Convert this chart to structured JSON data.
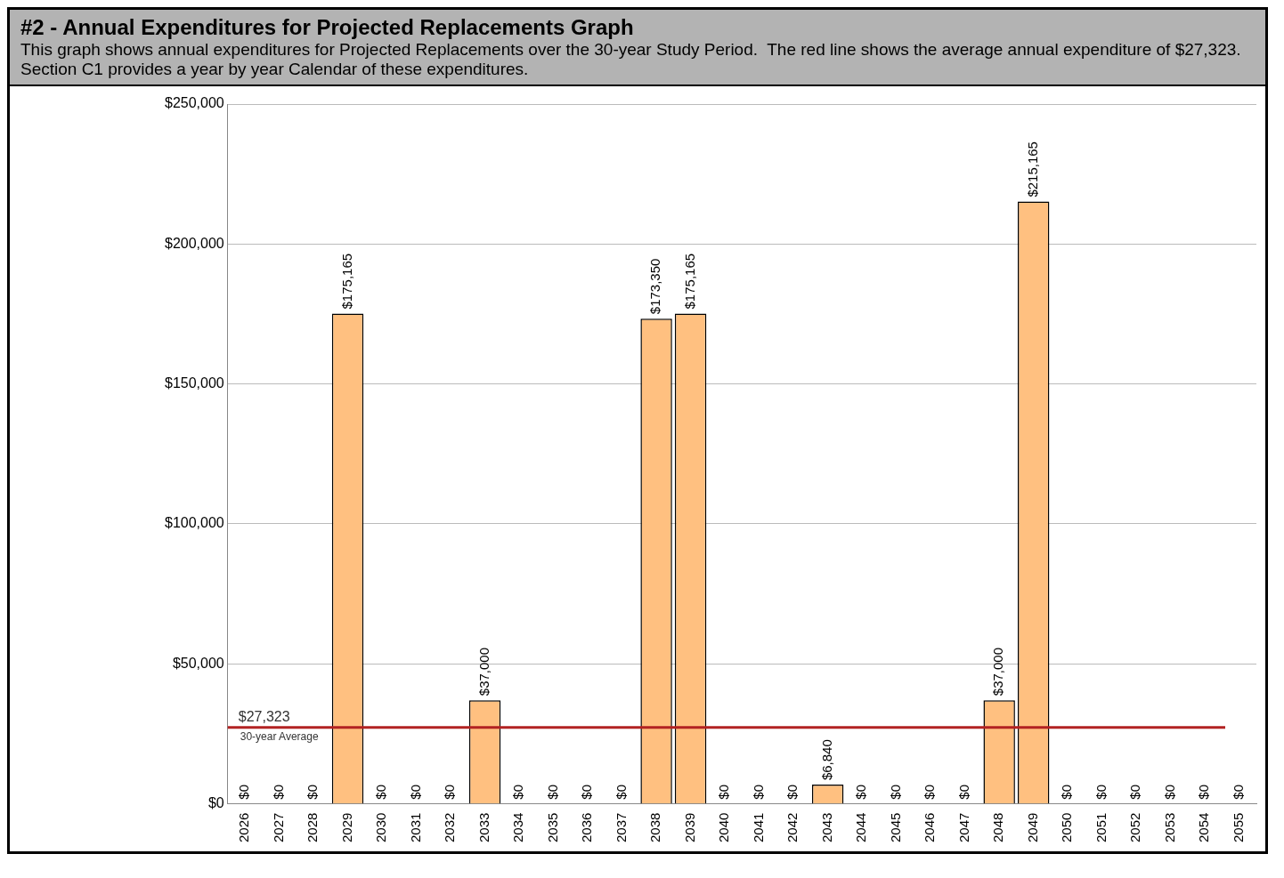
{
  "chart_data": {
    "type": "bar",
    "title": "#2 - Annual Expenditures for Projected Replacements Graph",
    "subtitle": "This graph shows annual expenditures for Projected Replacements over the 30-year Study Period.  The red line shows the average annual expenditure of $27,323. Section C1 provides a year by year Calendar of these expenditures.",
    "categories": [
      "2026",
      "2027",
      "2028",
      "2029",
      "2030",
      "2031",
      "2032",
      "2033",
      "2034",
      "2035",
      "2036",
      "2037",
      "2038",
      "2039",
      "2040",
      "2041",
      "2042",
      "2043",
      "2044",
      "2045",
      "2046",
      "2047",
      "2048",
      "2049",
      "2050",
      "2051",
      "2052",
      "2053",
      "2054",
      "2055"
    ],
    "values": [
      0,
      0,
      0,
      175165,
      0,
      0,
      0,
      37000,
      0,
      0,
      0,
      0,
      173350,
      175165,
      0,
      0,
      0,
      6840,
      0,
      0,
      0,
      0,
      37000,
      215165,
      0,
      0,
      0,
      0,
      0,
      0
    ],
    "value_labels": [
      "$0",
      "$0",
      "$0",
      "$175,165",
      "$0",
      "$0",
      "$0",
      "$37,000",
      "$0",
      "$0",
      "$0",
      "$0",
      "$173,350",
      "$175,165",
      "$0",
      "$0",
      "$0",
      "$6,840",
      "$0",
      "$0",
      "$0",
      "$0",
      "$37,000",
      "$215,165",
      "$0",
      "$0",
      "$0",
      "$0",
      "$0",
      "$0"
    ],
    "color": "#ffc080",
    "ylim": [
      0,
      250000
    ],
    "yticks": [
      {
        "value": 0,
        "label": "$0"
      },
      {
        "value": 50000,
        "label": "$50,000"
      },
      {
        "value": 100000,
        "label": "$100,000"
      },
      {
        "value": 150000,
        "label": "$150,000"
      },
      {
        "value": 200000,
        "label": "$200,000"
      },
      {
        "value": 250000,
        "label": "$250,000"
      }
    ],
    "ref_lines": [
      {
        "axis": "y",
        "value": 27323,
        "label": "$27,323",
        "color": "#b22222"
      }
    ],
    "annotations": [
      "30-year Average"
    ],
    "grid": "y",
    "legend": false
  }
}
